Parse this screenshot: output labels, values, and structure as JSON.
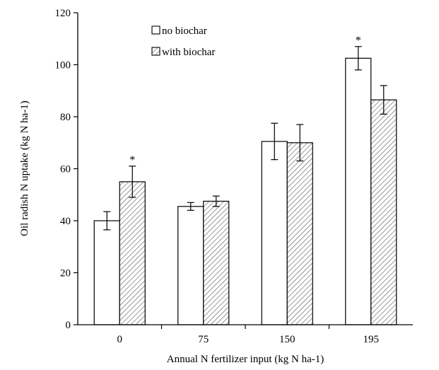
{
  "chart_data": {
    "type": "bar",
    "title": "",
    "xlabel": "Annual N fertilizer input (kg N ha-1)",
    "ylabel": "Oil radish N uptake (kg N ha-1)",
    "ylim": [
      0,
      120
    ],
    "yticks": [
      0,
      20,
      40,
      60,
      80,
      100,
      120
    ],
    "categories": [
      "0",
      "75",
      "150",
      "195"
    ],
    "series": [
      {
        "name": "no biochar",
        "values": [
          40,
          45.5,
          70.5,
          102.5
        ],
        "errors": [
          3.5,
          1.5,
          7,
          4.5
        ],
        "significant": [
          false,
          false,
          false,
          true
        ],
        "fill": "#ffffff"
      },
      {
        "name": "with biochar",
        "values": [
          55,
          47.5,
          70,
          86.5
        ],
        "errors": [
          6,
          2,
          7,
          5.5
        ],
        "significant": [
          true,
          false,
          false,
          false
        ],
        "fill": "hatched"
      }
    ],
    "significance_marker": "*",
    "legend_position": "top-left",
    "grid": false
  }
}
